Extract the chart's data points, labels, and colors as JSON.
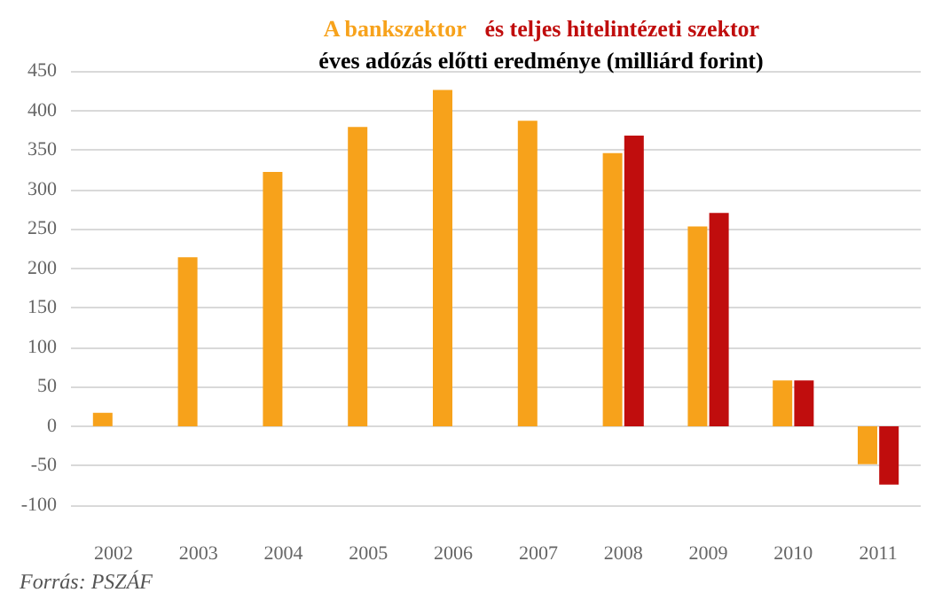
{
  "chart_data": {
    "type": "bar",
    "title": "éves adózás előtti eredménye (milliárd forint)",
    "categories": [
      "2002",
      "2003",
      "2004",
      "2005",
      "2006",
      "2007",
      "2008",
      "2009",
      "2010",
      "2011"
    ],
    "series": [
      {
        "name": "A bankszektor",
        "color": "#f7a21b",
        "values": [
          17,
          214,
          322,
          379,
          426,
          387,
          346,
          253,
          58,
          -48
        ]
      },
      {
        "name": "és teljes hitelintézeti szektor",
        "color": "#c00d0d",
        "values": [
          null,
          null,
          null,
          null,
          null,
          null,
          368,
          270,
          58,
          -74
        ]
      }
    ],
    "ylim": [
      -100,
      450
    ],
    "yticks": [
      -100,
      -50,
      0,
      50,
      100,
      150,
      200,
      250,
      300,
      350,
      400,
      450
    ],
    "grid": "y",
    "legend": false,
    "annotations": [
      "Forrás: PSZÁF"
    ]
  }
}
